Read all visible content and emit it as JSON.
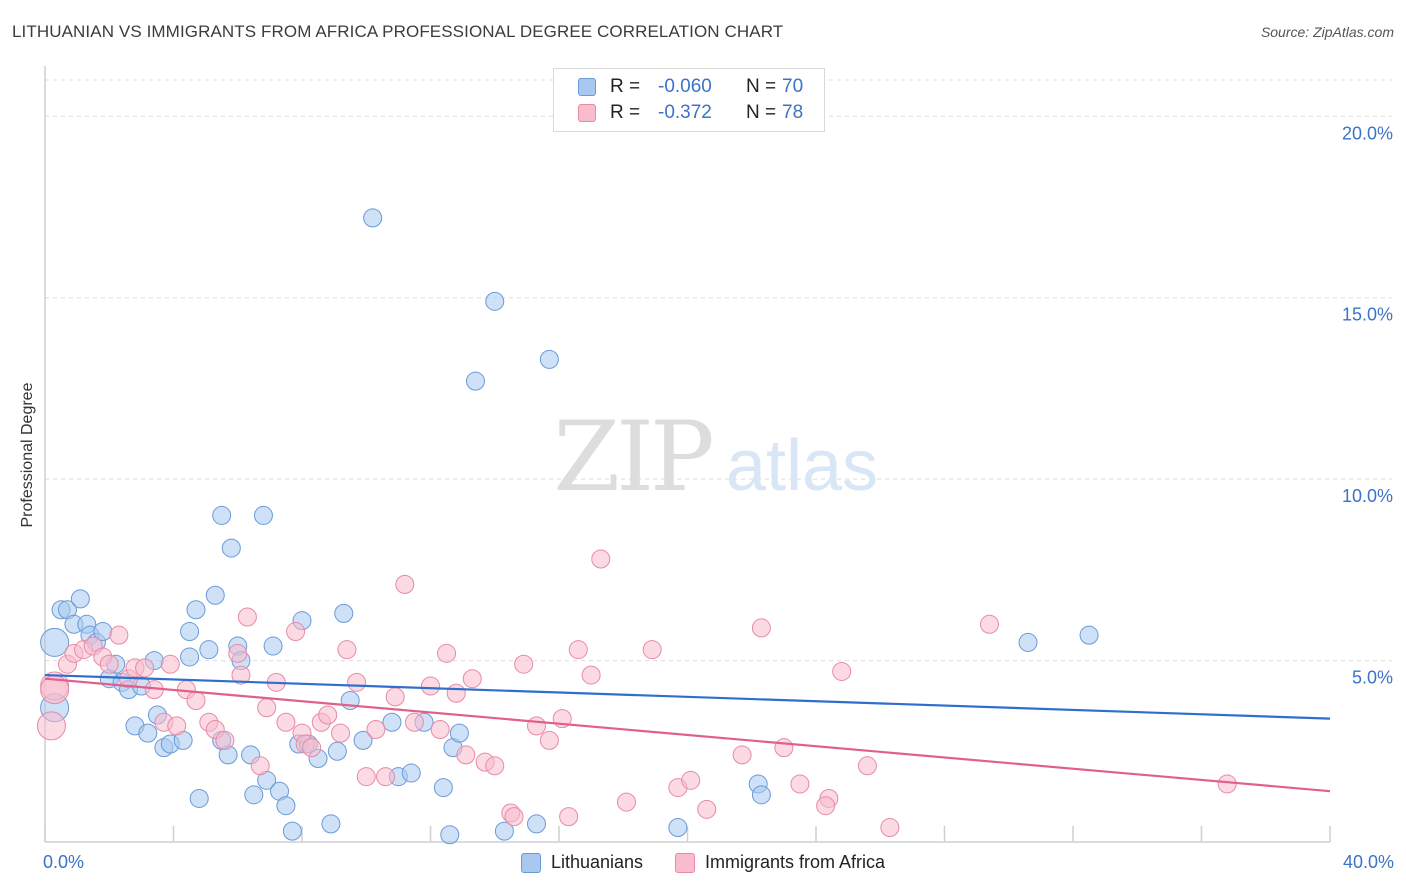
{
  "title": "LITHUANIAN VS IMMIGRANTS FROM AFRICA PROFESSIONAL DEGREE CORRELATION CHART",
  "source": "Source: ZipAtlas.com",
  "watermark": {
    "zip": "ZIP",
    "atlas": "atlas"
  },
  "legend_top": [
    {
      "r_label": "R =",
      "r_value": "-0.060",
      "n_label": "N =",
      "n_value": "70",
      "color": "#a8c8f0",
      "border": "#6a9ad8"
    },
    {
      "r_label": "R =",
      "r_value": "-0.372",
      "n_label": "N =",
      "n_value": "78",
      "color": "#f8bccd",
      "border": "#e88aa5"
    }
  ],
  "legend_bottom": [
    {
      "label": "Lithuanians",
      "color": "#a8c8f0",
      "border": "#6a9ad8"
    },
    {
      "label": "Immigrants from Africa",
      "color": "#f8bccd",
      "border": "#e88aa5"
    }
  ],
  "x_tick_labels": {
    "left": "0.0%",
    "right": "40.0%"
  },
  "chart_data": {
    "type": "scatter",
    "title": "LITHUANIAN VS IMMIGRANTS FROM AFRICA PROFESSIONAL DEGREE CORRELATION CHART",
    "xlabel": "",
    "ylabel": "Professional Degree",
    "xlim": [
      0,
      40
    ],
    "ylim": [
      0,
      21
    ],
    "x_unit": "%",
    "y_unit": "%",
    "yticks": [
      {
        "value": 5,
        "label": "5.0%"
      },
      {
        "value": 10,
        "label": "10.0%"
      },
      {
        "value": 15,
        "label": "15.0%"
      },
      {
        "value": 20,
        "label": "20.0%"
      }
    ],
    "grid": true,
    "legend_position": "top-center",
    "series": [
      {
        "name": "Lithuanians",
        "color": "#a8c8f0",
        "stroke": "#6a9ad8",
        "line_color": "#2f6fcc",
        "trend": [
          [
            0,
            4.6
          ],
          [
            40,
            3.4
          ]
        ],
        "points": [
          [
            0.3,
            3.7
          ],
          [
            0.3,
            5.5
          ],
          [
            0.5,
            6.4
          ],
          [
            0.7,
            6.4
          ],
          [
            0.9,
            6.0
          ],
          [
            1.1,
            6.7
          ],
          [
            1.3,
            6.0
          ],
          [
            1.4,
            5.7
          ],
          [
            1.6,
            5.5
          ],
          [
            1.8,
            5.8
          ],
          [
            2.0,
            4.5
          ],
          [
            2.2,
            4.9
          ],
          [
            2.4,
            4.4
          ],
          [
            2.6,
            4.2
          ],
          [
            2.8,
            3.2
          ],
          [
            3.0,
            4.3
          ],
          [
            3.2,
            3.0
          ],
          [
            3.4,
            5.0
          ],
          [
            3.5,
            3.5
          ],
          [
            3.7,
            2.6
          ],
          [
            3.9,
            2.7
          ],
          [
            4.3,
            2.8
          ],
          [
            4.5,
            5.8
          ],
          [
            4.5,
            5.1
          ],
          [
            4.7,
            6.4
          ],
          [
            4.8,
            1.2
          ],
          [
            5.1,
            5.3
          ],
          [
            5.3,
            6.8
          ],
          [
            5.5,
            9.0
          ],
          [
            5.7,
            2.4
          ],
          [
            5.8,
            8.1
          ],
          [
            6.0,
            5.4
          ],
          [
            6.1,
            5.0
          ],
          [
            6.4,
            2.4
          ],
          [
            6.5,
            1.3
          ],
          [
            6.8,
            9.0
          ],
          [
            6.9,
            1.7
          ],
          [
            7.1,
            5.4
          ],
          [
            7.3,
            1.4
          ],
          [
            7.5,
            1.0
          ],
          [
            7.7,
            0.3
          ],
          [
            7.9,
            2.7
          ],
          [
            8.0,
            6.1
          ],
          [
            8.2,
            2.7
          ],
          [
            8.5,
            2.3
          ],
          [
            8.9,
            0.5
          ],
          [
            9.1,
            2.5
          ],
          [
            9.3,
            6.3
          ],
          [
            9.5,
            3.9
          ],
          [
            9.9,
            2.8
          ],
          [
            10.2,
            17.2
          ],
          [
            10.8,
            3.3
          ],
          [
            11.0,
            1.8
          ],
          [
            11.4,
            1.9
          ],
          [
            11.8,
            3.3
          ],
          [
            12.4,
            1.5
          ],
          [
            12.6,
            0.2
          ],
          [
            12.7,
            2.6
          ],
          [
            12.9,
            3.0
          ],
          [
            13.4,
            12.7
          ],
          [
            14.0,
            14.9
          ],
          [
            14.3,
            0.3
          ],
          [
            15.3,
            0.5
          ],
          [
            15.7,
            13.3
          ],
          [
            19.7,
            0.4
          ],
          [
            22.2,
            1.6
          ],
          [
            22.3,
            1.3
          ],
          [
            30.6,
            5.5
          ],
          [
            32.5,
            5.7
          ],
          [
            5.5,
            2.8
          ]
        ]
      },
      {
        "name": "Immigrants from Africa",
        "color": "#f8bccd",
        "stroke": "#e88aa5",
        "line_color": "#e0608a",
        "trend": [
          [
            0,
            4.5
          ],
          [
            40,
            1.4
          ]
        ],
        "points": [
          [
            0.2,
            3.2
          ],
          [
            0.3,
            4.3
          ],
          [
            0.7,
            4.9
          ],
          [
            0.9,
            5.2
          ],
          [
            1.2,
            5.3
          ],
          [
            1.5,
            5.4
          ],
          [
            1.8,
            5.1
          ],
          [
            2.0,
            4.9
          ],
          [
            2.3,
            5.7
          ],
          [
            2.6,
            4.5
          ],
          [
            2.8,
            4.8
          ],
          [
            3.1,
            4.8
          ],
          [
            3.4,
            4.2
          ],
          [
            3.7,
            3.3
          ],
          [
            3.9,
            4.9
          ],
          [
            4.1,
            3.2
          ],
          [
            4.4,
            4.2
          ],
          [
            4.7,
            3.9
          ],
          [
            5.1,
            3.3
          ],
          [
            5.3,
            3.1
          ],
          [
            5.6,
            2.8
          ],
          [
            6.0,
            5.2
          ],
          [
            6.1,
            4.6
          ],
          [
            6.3,
            6.2
          ],
          [
            6.7,
            2.1
          ],
          [
            6.9,
            3.7
          ],
          [
            7.2,
            4.4
          ],
          [
            7.5,
            3.3
          ],
          [
            7.8,
            5.8
          ],
          [
            8.0,
            3.0
          ],
          [
            8.1,
            2.7
          ],
          [
            8.3,
            2.6
          ],
          [
            8.6,
            3.3
          ],
          [
            8.8,
            3.5
          ],
          [
            9.2,
            3.0
          ],
          [
            9.4,
            5.3
          ],
          [
            9.7,
            4.4
          ],
          [
            10.0,
            1.8
          ],
          [
            10.3,
            3.1
          ],
          [
            10.6,
            1.8
          ],
          [
            10.9,
            4.0
          ],
          [
            11.2,
            7.1
          ],
          [
            11.5,
            3.3
          ],
          [
            12.0,
            4.3
          ],
          [
            12.3,
            3.1
          ],
          [
            12.5,
            5.2
          ],
          [
            12.8,
            4.1
          ],
          [
            13.1,
            2.4
          ],
          [
            13.3,
            4.5
          ],
          [
            13.7,
            2.2
          ],
          [
            14.0,
            2.1
          ],
          [
            14.5,
            0.8
          ],
          [
            14.6,
            0.7
          ],
          [
            14.9,
            4.9
          ],
          [
            15.3,
            3.2
          ],
          [
            15.7,
            2.8
          ],
          [
            16.1,
            3.4
          ],
          [
            16.3,
            0.7
          ],
          [
            16.6,
            5.3
          ],
          [
            17.0,
            4.6
          ],
          [
            17.3,
            7.8
          ],
          [
            18.1,
            1.1
          ],
          [
            18.9,
            5.3
          ],
          [
            19.7,
            1.5
          ],
          [
            20.1,
            1.7
          ],
          [
            20.6,
            0.9
          ],
          [
            21.7,
            2.4
          ],
          [
            22.3,
            5.9
          ],
          [
            23.0,
            2.6
          ],
          [
            23.5,
            1.6
          ],
          [
            24.4,
            1.2
          ],
          [
            24.3,
            1.0
          ],
          [
            24.8,
            4.7
          ],
          [
            25.6,
            2.1
          ],
          [
            26.3,
            0.4
          ],
          [
            29.4,
            6.0
          ],
          [
            36.8,
            1.6
          ],
          [
            0.3,
            4.2
          ]
        ]
      }
    ]
  }
}
